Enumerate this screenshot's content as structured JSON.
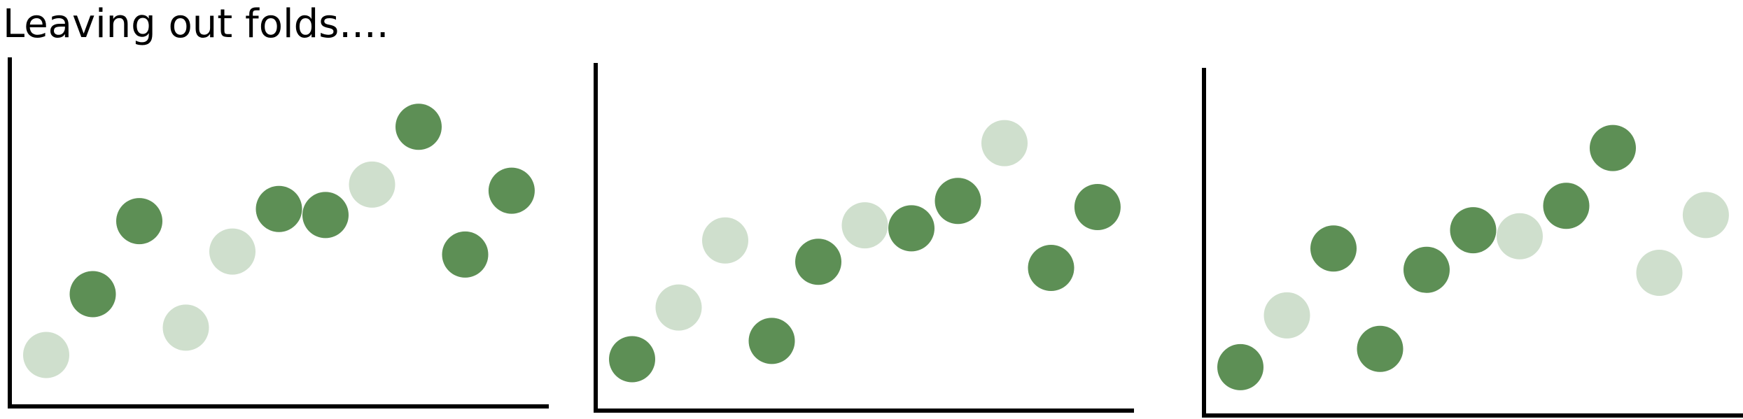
{
  "title": "Leaving out folds....",
  "colors": {
    "kept": "#5d8f55",
    "left_out": "#cfdfcd",
    "axis": "#000000"
  },
  "panels": [
    {
      "name": "fold-panel-1",
      "points": [
        {
          "x": 1,
          "y": 1,
          "state": "left_out"
        },
        {
          "x": 2,
          "y": 3,
          "state": "kept"
        },
        {
          "x": 3,
          "y": 5.4,
          "state": "kept"
        },
        {
          "x": 4,
          "y": 1.9,
          "state": "left_out"
        },
        {
          "x": 5,
          "y": 4.4,
          "state": "left_out"
        },
        {
          "x": 6,
          "y": 5.8,
          "state": "kept"
        },
        {
          "x": 7,
          "y": 5.6,
          "state": "kept"
        },
        {
          "x": 8,
          "y": 6.6,
          "state": "left_out"
        },
        {
          "x": 9,
          "y": 8.5,
          "state": "kept"
        },
        {
          "x": 10,
          "y": 4.3,
          "state": "kept"
        },
        {
          "x": 11,
          "y": 6.4,
          "state": "kept"
        }
      ]
    },
    {
      "name": "fold-panel-2",
      "points": [
        {
          "x": 1,
          "y": 1,
          "state": "kept"
        },
        {
          "x": 2,
          "y": 2.7,
          "state": "left_out"
        },
        {
          "x": 3,
          "y": 4.9,
          "state": "left_out"
        },
        {
          "x": 4,
          "y": 1.6,
          "state": "kept"
        },
        {
          "x": 5,
          "y": 4.2,
          "state": "kept"
        },
        {
          "x": 6,
          "y": 5.4,
          "state": "left_out"
        },
        {
          "x": 7,
          "y": 5.3,
          "state": "kept"
        },
        {
          "x": 8,
          "y": 6.2,
          "state": "kept"
        },
        {
          "x": 9,
          "y": 8.1,
          "state": "left_out"
        },
        {
          "x": 10,
          "y": 4.0,
          "state": "kept"
        },
        {
          "x": 11,
          "y": 6.0,
          "state": "kept"
        }
      ]
    },
    {
      "name": "fold-panel-3",
      "points": [
        {
          "x": 1,
          "y": 0.9,
          "state": "kept"
        },
        {
          "x": 2,
          "y": 2.6,
          "state": "left_out"
        },
        {
          "x": 3,
          "y": 4.8,
          "state": "kept"
        },
        {
          "x": 4,
          "y": 1.5,
          "state": "kept"
        },
        {
          "x": 5,
          "y": 4.1,
          "state": "kept"
        },
        {
          "x": 6,
          "y": 5.4,
          "state": "kept"
        },
        {
          "x": 7,
          "y": 5.2,
          "state": "left_out"
        },
        {
          "x": 8,
          "y": 6.2,
          "state": "kept"
        },
        {
          "x": 9,
          "y": 8.1,
          "state": "kept"
        },
        {
          "x": 10,
          "y": 4.0,
          "state": "left_out"
        },
        {
          "x": 11,
          "y": 5.9,
          "state": "left_out"
        }
      ]
    }
  ]
}
